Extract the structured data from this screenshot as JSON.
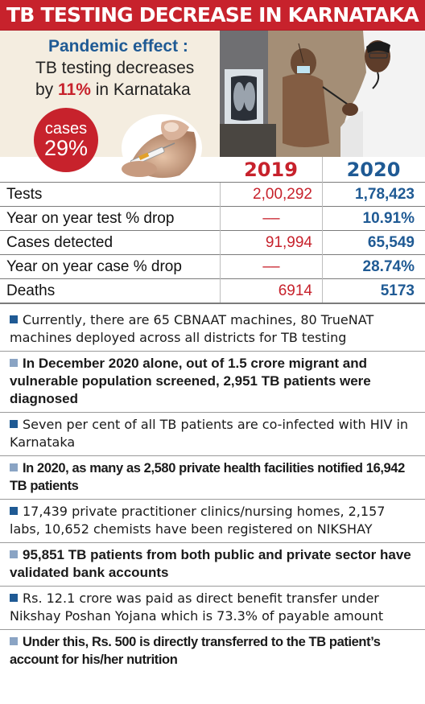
{
  "header": {
    "title": "TB TESTING DECREASE IN KARNATAKA"
  },
  "intro": {
    "title": "Pandemic effect :",
    "line1": "TB testing decreases",
    "line2_pre": "by ",
    "line2_pct": "11%",
    "line2_post": " in Karnataka",
    "cases_label": "cases",
    "cases_value": "29%"
  },
  "table": {
    "years": [
      "2019",
      "2020"
    ],
    "rows": [
      {
        "label": "Tests",
        "v2019": "2,00,292",
        "v2020": "1,78,423"
      },
      {
        "label": "Year on year test % drop",
        "v2019": "––",
        "v2020": "10.91%"
      },
      {
        "label": "Cases detected",
        "v2019": "91,994",
        "v2020": "65,549"
      },
      {
        "label": "Year on year case % drop",
        "v2019": "––",
        "v2020": "28.74%"
      },
      {
        "label": "Deaths",
        "v2019": "6914",
        "v2020": "5173"
      }
    ]
  },
  "colors": {
    "accent_red": "#c7222c",
    "accent_blue": "#1f5a94",
    "panel_bg": "#f4ede0"
  },
  "bullets": [
    "Currently, there are 65 CBNAAT machines, 80 TrueNAT machines deployed across all districts for TB testing",
    "In December 2020 alone, out of 1.5 crore migrant and vulnerable population screened, 2,951 TB patients were diagnosed",
    "Seven per cent of all TB patients are co-infected with HIV in Karnataka",
    "In 2020, as many as 2,580 private health facilities notified 16,942 TB patients",
    "17,439 private practitioner clinics/nursing homes, 2,157 labs, 10,652 chemists have been registered on NIKSHAY",
    "95,851 TB patients from both public and private sector have validated bank accounts",
    "Rs. 12.1 crore was paid as direct benefit transfer under Nikshay Poshan Yojana which is 73.3% of payable amount",
    "Under this, Rs. 500 is directly transferred to the TB patient’s account for his/her nutrition"
  ],
  "images": {
    "injection": "syringe-injection-icon",
    "photo": "doctor-examining-patient-photo"
  }
}
